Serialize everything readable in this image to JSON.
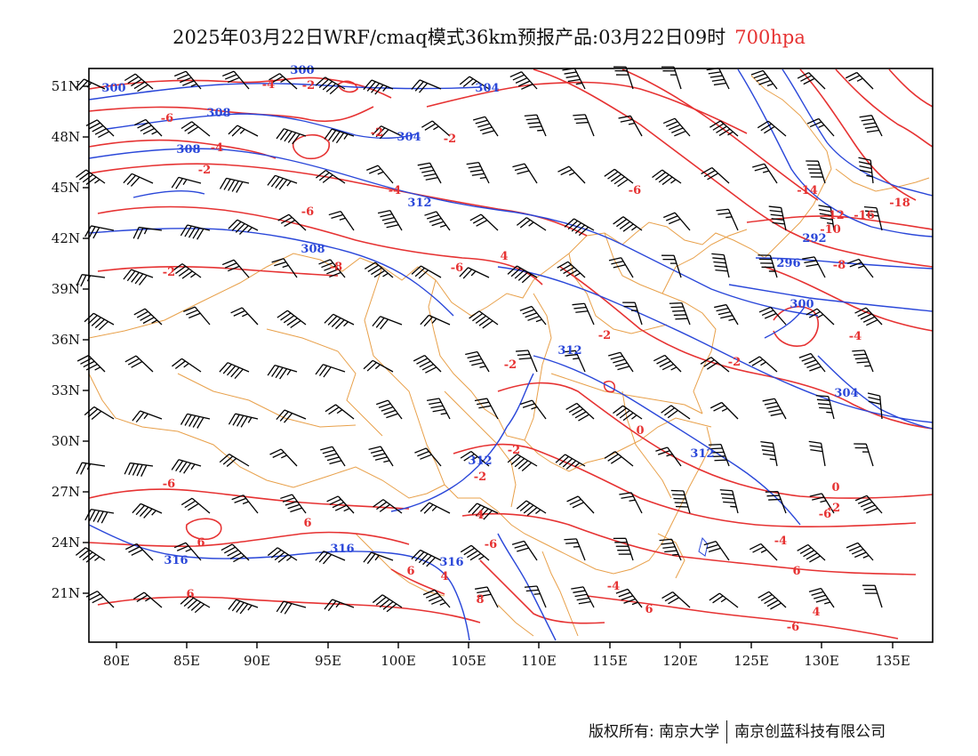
{
  "title": {
    "main": "2025年03月22日WRF/cmaq模式36km预报产品:03月22日09时",
    "level": "700hpa"
  },
  "axes": {
    "lon_labels": [
      "80E",
      "85E",
      "90E",
      "95E",
      "100E",
      "105E",
      "110E",
      "115E",
      "120E",
      "125E",
      "130E",
      "135E"
    ],
    "lat_labels": [
      "51N",
      "48N",
      "45N",
      "42N",
      "39N",
      "36N",
      "33N",
      "30N",
      "27N",
      "24N",
      "21N"
    ]
  },
  "colors": {
    "temperature": "#e63232",
    "geopotential": "#2a47d9",
    "boundary": "#e8a04a",
    "wind": "#000000"
  },
  "contour_labels": {
    "geopotential": [
      "300",
      "300",
      "304",
      "308",
      "304",
      "308",
      "312",
      "308",
      "292",
      "296",
      "300",
      "312",
      "304",
      "312",
      "312",
      "316",
      "316",
      "316"
    ],
    "temperature": [
      "-4",
      "-2",
      "-6",
      "-4",
      "-2",
      "-2",
      "-2",
      "-6",
      "-4",
      "-6",
      "-8",
      "-2",
      "-6",
      "4",
      "-14",
      "-12",
      "-16",
      "-18",
      "-10",
      "-8",
      "-4",
      "-2",
      "-2",
      "-2",
      "0",
      "-2",
      "0",
      "-2",
      "-2",
      "-6",
      "4",
      "-4",
      "6",
      "6",
      "-6",
      "6",
      "6",
      "8",
      "4",
      "-4",
      "-6",
      "6",
      "6",
      "4",
      "-6"
    ]
  },
  "footer": {
    "left": "版权所有: 南京大学",
    "right": "南京创蓝科技有限公司"
  }
}
